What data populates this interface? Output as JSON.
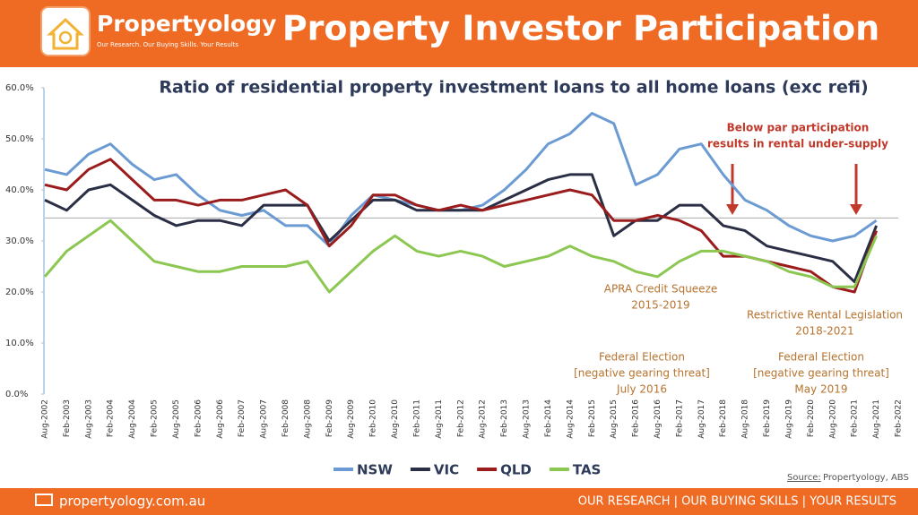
{
  "brand": {
    "name": "Propertyology",
    "tagline": "Our Research. Our Buying Skills. Your Results",
    "website": "propertyology.com.au",
    "slogan": "OUR RESEARCH | OUR BUYING SKILLS | YOUR RESULTS"
  },
  "header": {
    "title": "Property Investor Participation"
  },
  "chart_data": {
    "type": "line",
    "title": "Ratio of residential property investment loans to all home loans (exc refi)",
    "categories": [
      "Aug-2002",
      "Feb-2003",
      "Aug-2003",
      "Feb-2004",
      "Aug-2004",
      "Feb-2005",
      "Aug-2005",
      "Feb-2006",
      "Aug-2006",
      "Feb-2007",
      "Aug-2007",
      "Feb-2008",
      "Aug-2008",
      "Feb-2009",
      "Aug-2009",
      "Feb-2010",
      "Aug-2010",
      "Feb-2011",
      "Aug-2011",
      "Feb-2012",
      "Aug-2012",
      "Feb-2013",
      "Aug-2013",
      "Feb-2014",
      "Aug-2014",
      "Feb-2015",
      "Aug-2015",
      "Feb-2016",
      "Aug-2016",
      "Feb-2017",
      "Aug-2017",
      "Feb-2018",
      "Aug-2018",
      "Feb-2019",
      "Aug-2019",
      "Feb-2020",
      "Aug-2020",
      "Feb-2021",
      "Aug-2021",
      "Feb-2022"
    ],
    "series": [
      {
        "name": "NSW",
        "color": "#6b9bd2",
        "values": [
          44,
          43,
          47,
          49,
          45,
          42,
          43,
          39,
          36,
          35,
          36,
          33,
          33,
          29,
          35,
          39,
          38,
          37,
          36,
          36,
          37,
          40,
          44,
          49,
          51,
          55,
          53,
          41,
          43,
          48,
          49,
          43,
          38,
          36,
          33,
          31,
          30,
          31,
          34,
          null
        ]
      },
      {
        "name": "VIC",
        "color": "#2b2f45",
        "values": [
          38,
          36,
          40,
          41,
          38,
          35,
          33,
          34,
          34,
          33,
          37,
          37,
          37,
          30,
          34,
          38,
          38,
          36,
          36,
          36,
          36,
          38,
          40,
          42,
          43,
          43,
          31,
          34,
          34,
          37,
          37,
          33,
          32,
          29,
          28,
          27,
          26,
          22,
          33,
          null
        ]
      },
      {
        "name": "QLD",
        "color": "#9b1c1c",
        "values": [
          41,
          40,
          44,
          46,
          42,
          38,
          38,
          37,
          38,
          38,
          39,
          40,
          37,
          29,
          33,
          39,
          39,
          37,
          36,
          37,
          36,
          37,
          38,
          39,
          40,
          39,
          34,
          34,
          35,
          34,
          32,
          27,
          27,
          26,
          25,
          24,
          21,
          20,
          32,
          null
        ]
      },
      {
        "name": "TAS",
        "color": "#8cc751",
        "values": [
          23,
          28,
          31,
          34,
          30,
          26,
          25,
          24,
          24,
          25,
          25,
          25,
          26,
          20,
          24,
          28,
          31,
          28,
          27,
          28,
          27,
          25,
          26,
          27,
          29,
          27,
          26,
          24,
          23,
          26,
          28,
          28,
          27,
          26,
          24,
          23,
          21,
          21,
          31,
          null
        ]
      }
    ],
    "ylim": [
      0,
      60
    ],
    "yticks": [
      {
        "value": 0,
        "label": "0.0%"
      },
      {
        "value": 10,
        "label": "10.0%"
      },
      {
        "value": 20,
        "label": "20.0%"
      },
      {
        "value": 30,
        "label": "30.0%"
      },
      {
        "value": 40,
        "label": "40.0%"
      },
      {
        "value": 50,
        "label": "50.0%"
      },
      {
        "value": 60,
        "label": "60.0%"
      }
    ],
    "reference_line": 34.5,
    "annotations": [
      {
        "lines": [
          "Below par participation",
          "results in rental under-supply"
        ],
        "color": "#c0392b"
      },
      {
        "lines": [
          "APRA Credit Squeeze",
          "2015-2019"
        ],
        "color": "#b8732e"
      },
      {
        "lines": [
          "Restrictive Rental Legislation",
          "2018-2021"
        ],
        "color": "#b8732e"
      },
      {
        "lines": [
          "Federal Election",
          "[negative gearing threat]",
          "July 2016"
        ],
        "color": "#b8732e"
      },
      {
        "lines": [
          "Federal Election",
          "[negative gearing threat]",
          "May 2019"
        ],
        "color": "#b8732e"
      }
    ],
    "source_label": "Source:",
    "source": "Propertyology, ABS"
  }
}
